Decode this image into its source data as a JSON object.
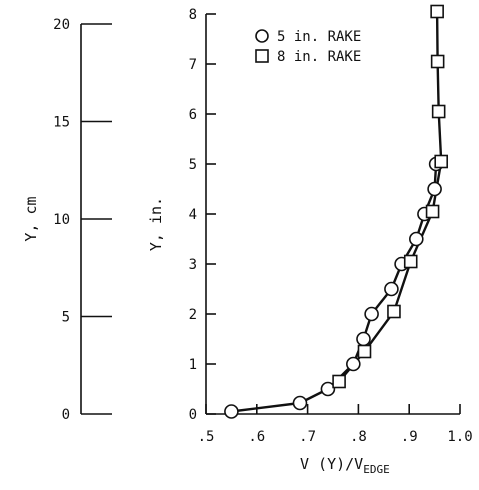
{
  "chart_data": {
    "type": "line",
    "left_axis": {
      "label": "Y, cm",
      "ticks": [
        "0",
        "5",
        "10",
        "15",
        "20"
      ],
      "tick_values": [
        0,
        5,
        10,
        15,
        20
      ],
      "ylim": [
        0,
        20
      ]
    },
    "ylabel": "Y, in.",
    "xlabel": {
      "main": "V (Y)/V",
      "sub": "EDGE"
    },
    "ylim": [
      0,
      8
    ],
    "xlim": [
      0.5,
      1.0
    ],
    "y_ticks": [
      "0",
      "1",
      "2",
      "3",
      "4",
      "5",
      "6",
      "7",
      "8"
    ],
    "y_tick_values": [
      0,
      1,
      2,
      3,
      4,
      5,
      6,
      7,
      8
    ],
    "x_ticks": [
      ".5",
      ".6",
      ".7",
      ".8",
      ".9",
      "1.0"
    ],
    "x_tick_values": [
      0.5,
      0.6,
      0.7,
      0.8,
      0.9,
      1.0
    ],
    "legend": {
      "placement": "top-left"
    },
    "series": [
      {
        "name": "5 in. RAKE",
        "marker": "circle",
        "x": [
          0.55,
          0.685,
          0.74,
          0.79,
          0.81,
          0.826,
          0.865,
          0.885,
          0.914,
          0.93,
          0.95,
          0.953
        ],
        "y": [
          0.05,
          0.22,
          0.5,
          1.0,
          1.5,
          2.0,
          2.5,
          3.0,
          3.5,
          4.0,
          4.5,
          5.0
        ]
      },
      {
        "name": "8 in. RAKE",
        "marker": "square",
        "x": [
          0.762,
          0.812,
          0.87,
          0.903,
          0.946,
          0.963,
          0.958,
          0.956,
          0.955
        ],
        "y": [
          0.65,
          1.25,
          2.05,
          3.05,
          4.05,
          5.05,
          6.05,
          7.05,
          8.05
        ]
      }
    ]
  }
}
